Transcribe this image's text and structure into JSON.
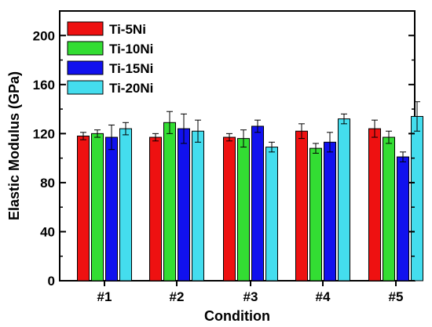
{
  "chart_data": {
    "type": "bar",
    "title": "",
    "xlabel": "Condition",
    "ylabel": "Elastic Modulus (GPa)",
    "categories": [
      "#1",
      "#2",
      "#3",
      "#4",
      "#5"
    ],
    "ylim": [
      0,
      220
    ],
    "yticks": [
      0,
      40,
      80,
      120,
      160,
      200
    ],
    "legend_position": "top-left",
    "grid": false,
    "series": [
      {
        "name": "Ti-5Ni",
        "color": "#ee1111",
        "values": [
          118,
          117,
          117,
          122,
          124
        ],
        "errors": [
          3,
          3,
          3,
          6,
          7
        ]
      },
      {
        "name": "Ti-10Ni",
        "color": "#33dd33",
        "values": [
          120,
          129,
          116,
          108,
          117
        ],
        "errors": [
          3,
          9,
          7,
          4,
          5
        ]
      },
      {
        "name": "Ti-15Ni",
        "color": "#1111ee",
        "values": [
          117,
          124,
          126,
          113,
          101
        ],
        "errors": [
          10,
          12,
          5,
          8,
          4
        ]
      },
      {
        "name": "Ti-20Ni",
        "color": "#44ddee",
        "values": [
          124,
          122,
          109,
          132,
          134
        ],
        "errors": [
          5,
          9,
          4,
          4,
          12
        ]
      }
    ]
  }
}
